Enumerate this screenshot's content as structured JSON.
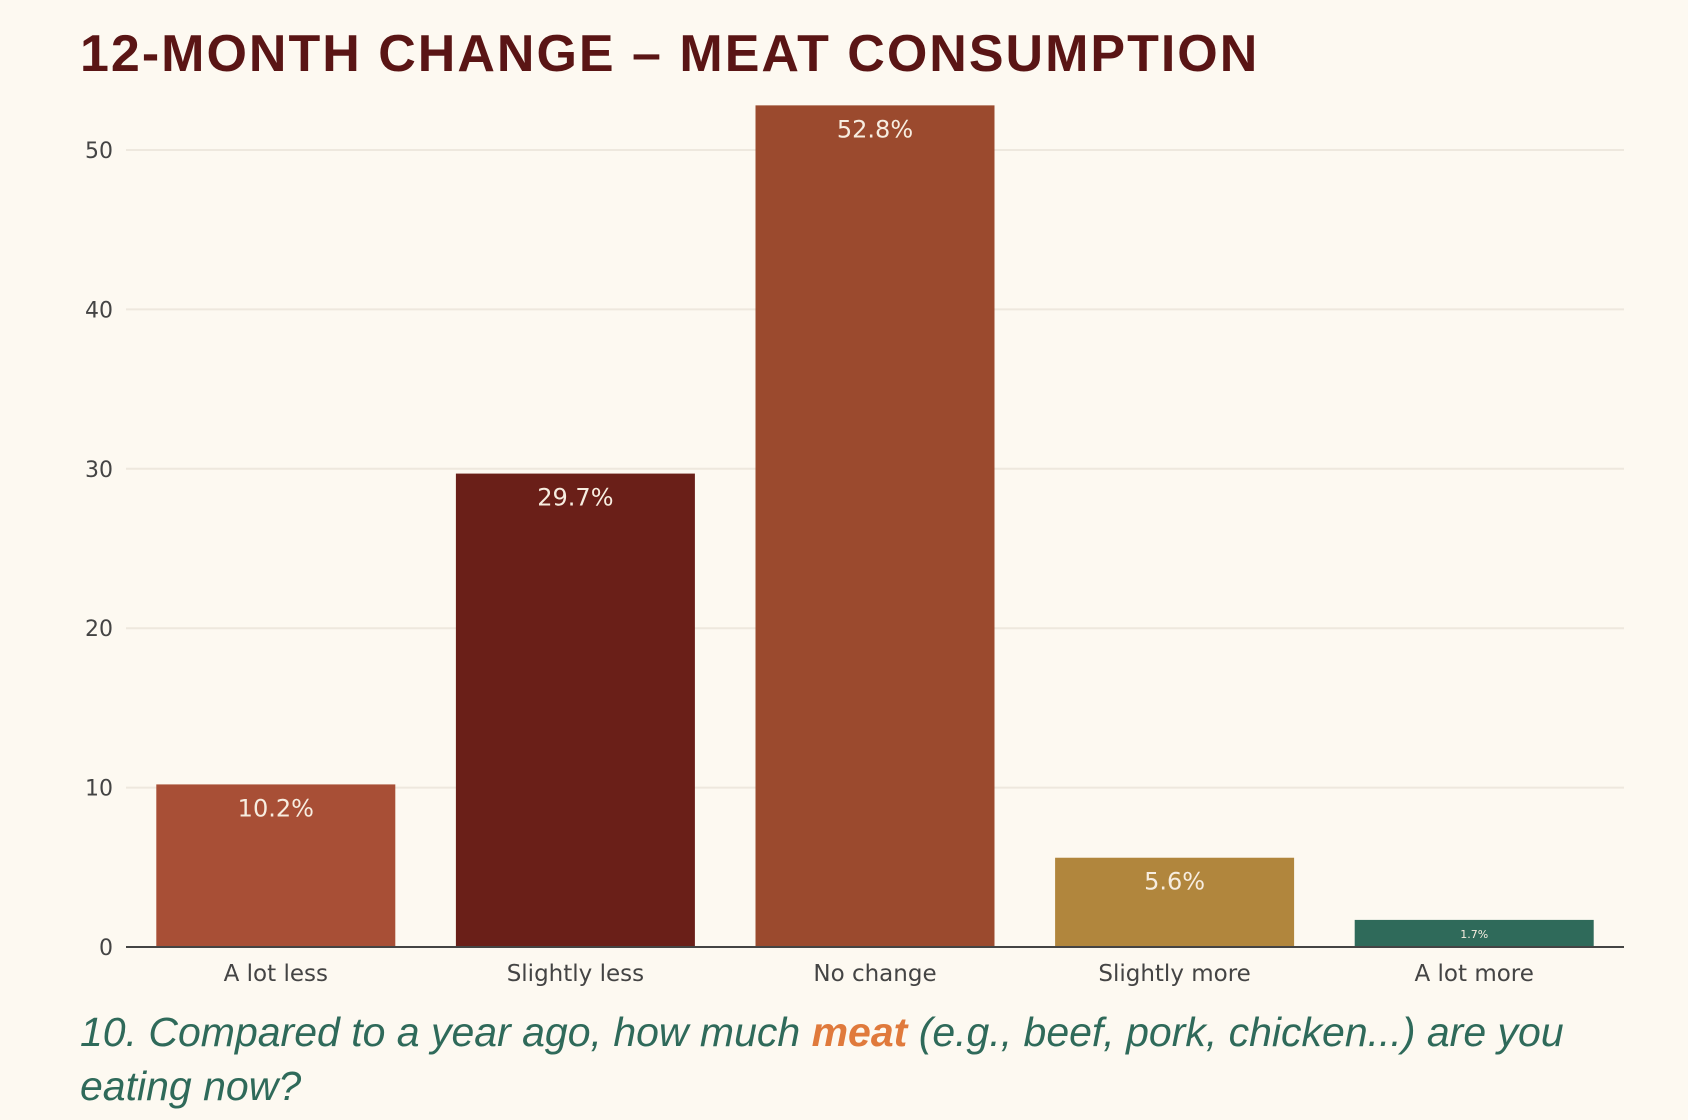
{
  "title": "12-MONTH CHANGE – MEAT CONSUMPTION",
  "question": {
    "prefix": "10. Compared to a year ago, how much ",
    "highlight": "meat",
    "suffix": " (e.g., beef, pork, chicken...) are you eating now?"
  },
  "colors": {
    "background": "#fdf9f1",
    "title": "#5a1515",
    "question": "#2f6a5a",
    "highlight": "#e07a3c"
  },
  "chart_data": {
    "type": "bar",
    "title": "12-MONTH CHANGE – MEAT CONSUMPTION",
    "xlabel": "",
    "ylabel": "",
    "categories": [
      "A lot less",
      "Slightly less",
      "No change",
      "Slightly more",
      "A lot more"
    ],
    "values": [
      10.2,
      29.7,
      52.8,
      5.6,
      1.7
    ],
    "data_labels": [
      "10.2%",
      "29.7%",
      "52.8%",
      "5.6%",
      "1.7%"
    ],
    "bar_colors": [
      "#a84f36",
      "#6a1f18",
      "#9b4a2e",
      "#b1863d",
      "#2f6a5a"
    ],
    "ylim": [
      0,
      53
    ],
    "yticks": [
      0,
      10,
      20,
      30,
      40,
      50
    ],
    "grid": true,
    "legend": "none"
  }
}
